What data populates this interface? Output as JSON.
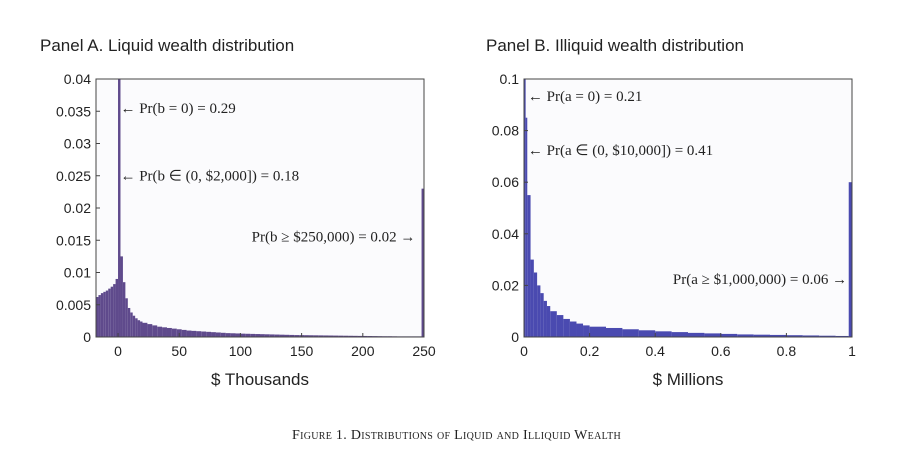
{
  "figure_caption": "Figure 1. Distributions of Liquid and Illiquid Wealth",
  "colors": {
    "bar": "#5f4a8c",
    "bar_b": "#4a4ab0",
    "frame": "#444444",
    "background": "#fbfbfd"
  },
  "chart_data": [
    {
      "type": "bar",
      "title": "Panel A. Liquid wealth distribution",
      "xlabel": "$ Thousands",
      "ylabel": "",
      "xlim": [
        -18,
        250
      ],
      "ylim": [
        0,
        0.04
      ],
      "xticks": [
        0,
        50,
        100,
        150,
        200,
        250
      ],
      "xtick_labels": [
        "0",
        "50",
        "100",
        "150",
        "200",
        "250"
      ],
      "yticks": [
        0,
        0.005,
        0.01,
        0.015,
        0.02,
        0.025,
        0.03,
        0.035,
        0.04
      ],
      "ytick_labels": [
        "0",
        "0.005",
        "0.01",
        "0.015",
        "0.02",
        "0.025",
        "0.03",
        "0.035",
        "0.04"
      ],
      "bin_width": 2,
      "bins_left": [
        -18,
        -16,
        -14,
        -12,
        -10,
        -8,
        -6,
        -4,
        -2,
        0,
        2,
        4,
        6,
        8,
        10,
        12,
        14,
        16,
        18,
        20,
        24,
        28,
        32,
        36,
        40,
        44,
        48,
        52,
        56,
        60,
        64,
        68,
        72,
        76,
        80,
        84,
        88,
        92,
        96,
        100,
        104,
        108,
        112,
        116,
        120,
        124,
        128,
        132,
        136,
        140,
        144,
        148,
        152,
        156,
        160,
        164,
        168,
        172,
        176,
        180,
        184,
        188,
        192,
        196,
        200,
        204,
        208,
        212,
        216,
        220,
        224,
        228,
        232,
        236,
        240,
        244,
        248
      ],
      "bins_width": [
        2,
        2,
        2,
        2,
        2,
        2,
        2,
        2,
        2,
        2,
        2,
        2,
        2,
        2,
        2,
        2,
        2,
        2,
        2,
        4,
        4,
        4,
        4,
        4,
        4,
        4,
        4,
        4,
        4,
        4,
        4,
        4,
        4,
        4,
        4,
        4,
        4,
        4,
        4,
        4,
        4,
        4,
        4,
        4,
        4,
        4,
        4,
        4,
        4,
        4,
        4,
        4,
        4,
        4,
        4,
        4,
        4,
        4,
        4,
        4,
        4,
        4,
        4,
        4,
        4,
        4,
        4,
        4,
        4,
        4,
        4,
        4,
        4,
        4,
        4,
        4,
        2
      ],
      "values": [
        0.0062,
        0.0065,
        0.0068,
        0.007,
        0.0072,
        0.0075,
        0.0078,
        0.0082,
        0.009,
        0.04,
        0.0125,
        0.0085,
        0.006,
        0.0045,
        0.0038,
        0.0033,
        0.0029,
        0.0026,
        0.0024,
        0.0022,
        0.002,
        0.0018,
        0.0016,
        0.0015,
        0.0014,
        0.0013,
        0.0012,
        0.0011,
        0.001,
        0.00095,
        0.0009,
        0.00085,
        0.0008,
        0.00075,
        0.0007,
        0.00065,
        0.0006,
        0.00058,
        0.00055,
        0.00052,
        0.0005,
        0.00048,
        0.00046,
        0.00044,
        0.00042,
        0.0004,
        0.00038,
        0.00036,
        0.00034,
        0.00032,
        0.0003,
        0.00029,
        0.00028,
        0.00027,
        0.00026,
        0.00025,
        0.00024,
        0.00023,
        0.00022,
        0.00021,
        0.0002,
        0.00019,
        0.00018,
        0.00017,
        0.00016,
        0.00015,
        0.00014,
        0.00013,
        0.00012,
        0.00012,
        0.00011,
        0.0001,
        0.0001,
        0.0001,
        0.0001,
        0.0001,
        0.023
      ],
      "annotations": [
        {
          "text": "← Pr(b = 0) = 0.29",
          "x": 2,
          "y": 0.0347,
          "anchor": "start"
        },
        {
          "text": "← Pr(b ∈ (0, $2,000]) = 0.18",
          "x": 2,
          "y": 0.0243,
          "anchor": "start"
        },
        {
          "text": "Pr(b ≥ $250,000) = 0.02 →",
          "x": 243,
          "y": 0.0148,
          "anchor": "end"
        }
      ]
    },
    {
      "type": "bar",
      "title": "Panel B. Illiquid wealth distribution",
      "xlabel": "$ Millions",
      "ylabel": "",
      "xlim": [
        0,
        1
      ],
      "ylim": [
        0,
        0.1
      ],
      "xticks": [
        0,
        0.2,
        0.4,
        0.6,
        0.8,
        1
      ],
      "xtick_labels": [
        "0",
        "0.2",
        "0.4",
        "0.6",
        "0.8",
        "1"
      ],
      "yticks": [
        0,
        0.02,
        0.04,
        0.06,
        0.08,
        0.1
      ],
      "ytick_labels": [
        "0",
        "0.02",
        "0.04",
        "0.06",
        "0.08",
        "0.1"
      ],
      "bins_left": [
        0,
        0.005,
        0.01,
        0.02,
        0.03,
        0.04,
        0.05,
        0.06,
        0.07,
        0.08,
        0.1,
        0.12,
        0.14,
        0.16,
        0.18,
        0.2,
        0.25,
        0.3,
        0.35,
        0.4,
        0.45,
        0.5,
        0.55,
        0.6,
        0.65,
        0.7,
        0.75,
        0.8,
        0.85,
        0.9,
        0.95,
        0.99
      ],
      "bins_width": [
        0.005,
        0.005,
        0.01,
        0.01,
        0.01,
        0.01,
        0.01,
        0.01,
        0.01,
        0.02,
        0.02,
        0.02,
        0.02,
        0.02,
        0.02,
        0.05,
        0.05,
        0.05,
        0.05,
        0.05,
        0.05,
        0.05,
        0.05,
        0.05,
        0.05,
        0.05,
        0.05,
        0.05,
        0.05,
        0.05,
        0.04,
        0.01
      ],
      "values": [
        0.1,
        0.085,
        0.055,
        0.03,
        0.025,
        0.02,
        0.017,
        0.014,
        0.012,
        0.01,
        0.0085,
        0.007,
        0.006,
        0.0052,
        0.0045,
        0.004,
        0.0035,
        0.003,
        0.0026,
        0.0022,
        0.0019,
        0.0016,
        0.0014,
        0.0012,
        0.001,
        0.0009,
        0.0008,
        0.0007,
        0.0006,
        0.0005,
        0.0004,
        0.06
      ],
      "annotations": [
        {
          "text": "← Pr(a = 0) = 0.21",
          "x": 0.012,
          "y": 0.0915,
          "anchor": "start"
        },
        {
          "text": "← Pr(a ∈ (0, $10,000]) = 0.41",
          "x": 0.012,
          "y": 0.0705,
          "anchor": "start"
        },
        {
          "text": "Pr(a ≥ $1,000,000) = 0.06 →",
          "x": 0.985,
          "y": 0.0205,
          "anchor": "end"
        }
      ]
    }
  ]
}
